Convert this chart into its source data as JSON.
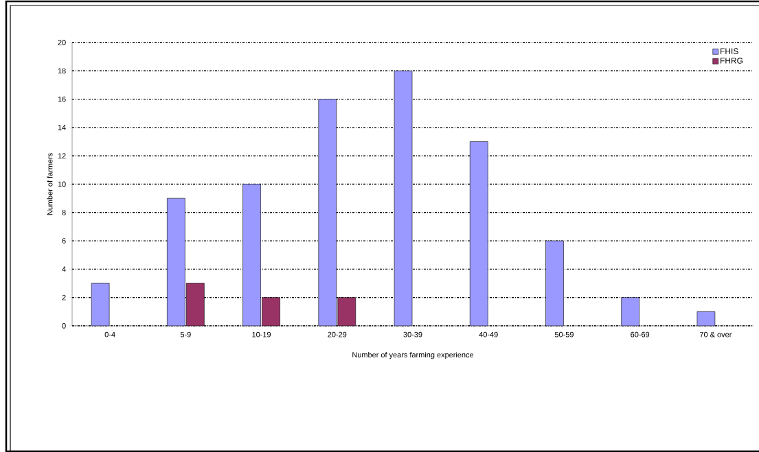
{
  "chart_data": {
    "type": "bar",
    "xlabel": "Number of years farming experience",
    "ylabel": "Number of farmers",
    "categories": [
      "0-4",
      "5-9",
      "10-19",
      "20-29",
      "30-39",
      "40-49",
      "50-59",
      "60-69",
      "70 & over"
    ],
    "series": [
      {
        "name": "FHIS",
        "color": "#9999ff",
        "values": [
          3,
          9,
          10,
          16,
          18,
          13,
          6,
          2,
          1
        ]
      },
      {
        "name": "FHRG",
        "color": "#993366",
        "values": [
          null,
          3,
          2,
          2,
          null,
          null,
          null,
          null,
          null
        ]
      }
    ],
    "ylim": [
      0,
      20
    ],
    "yticks": [
      0,
      2,
      4,
      6,
      8,
      10,
      12,
      14,
      16,
      18,
      20
    ],
    "grid": "y",
    "legend": "top right"
  }
}
